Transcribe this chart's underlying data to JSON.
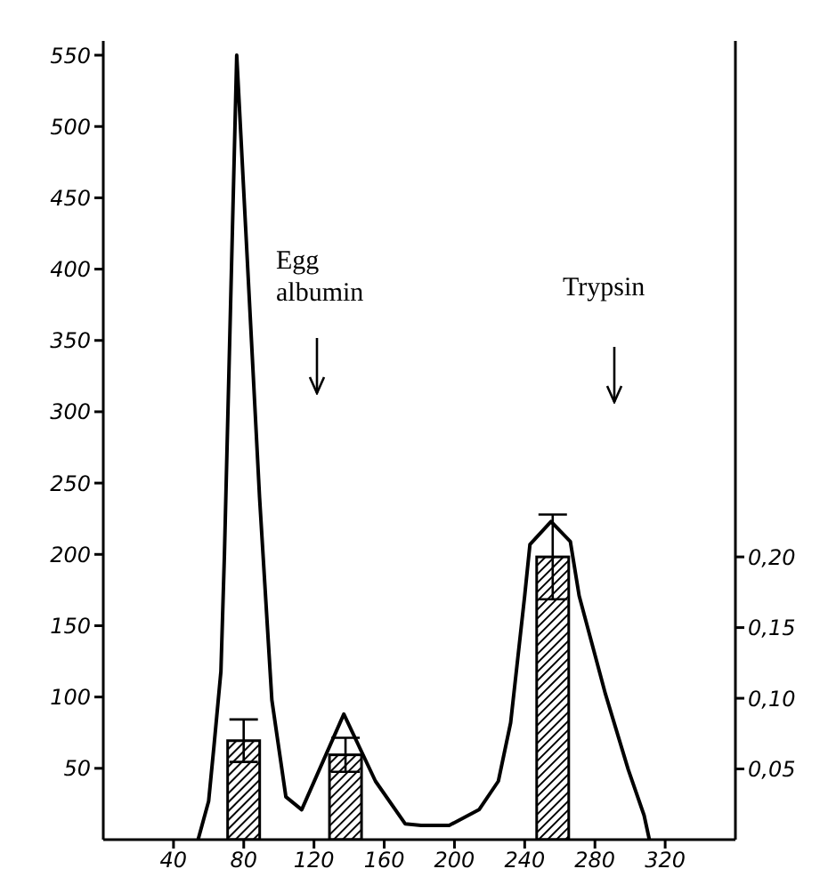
{
  "chart_data": {
    "type": "line",
    "xlim": [
      0,
      360
    ],
    "xticks": [
      40,
      80,
      120,
      160,
      200,
      240,
      280,
      320
    ],
    "ylim": [
      0,
      560
    ],
    "yticks": [
      50,
      100,
      150,
      200,
      250,
      300,
      350,
      400,
      450,
      500,
      550
    ],
    "y2lim": [
      0,
      0.565
    ],
    "y2ticks": [
      {
        "value": 0.05,
        "label": "0,05"
      },
      {
        "value": 0.1,
        "label": "0,10"
      },
      {
        "value": 0.15,
        "label": "0,15"
      },
      {
        "value": 0.2,
        "label": "0,20"
      }
    ],
    "grid": false,
    "legend": false,
    "series": [
      {
        "color": "#000000",
        "x": [
          54,
          60,
          63,
          67,
          69,
          76,
          89,
          96,
          104,
          113,
          137,
          155,
          172,
          181,
          197,
          214,
          225,
          232,
          240,
          243,
          255,
          266,
          271,
          286,
          299,
          308,
          311
        ],
        "values": [
          0,
          27,
          65,
          118,
          200,
          550,
          240,
          98,
          30,
          21,
          88,
          41,
          11,
          10,
          10,
          21,
          41,
          82,
          171,
          207,
          223,
          209,
          171,
          102,
          49,
          17,
          0
        ]
      },
      {
        "type": "bar",
        "axis": "y2",
        "color": "#000000",
        "x": [
          80,
          138,
          256
        ],
        "values": [
          0.07,
          0.06,
          0.2
        ],
        "errors": [
          [
            0.055,
            0.085
          ],
          [
            0.048,
            0.072
          ],
          [
            0.17,
            0.23
          ]
        ]
      }
    ],
    "annotations": [
      "Egg albumin",
      "Trypsin"
    ]
  }
}
